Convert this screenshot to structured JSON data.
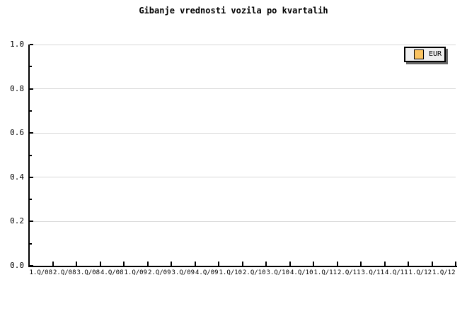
{
  "page": {
    "background_color": "#ffffff"
  },
  "chart_data": {
    "type": "line",
    "title": "Gibanje vrednosti vozila po kvartalih",
    "xlabel": "",
    "ylabel": "",
    "categories": [
      "1.Q/08",
      "2.Q/08",
      "3.Q/08",
      "4.Q/08",
      "1.Q/09",
      "2.Q/09",
      "3.Q/09",
      "4.Q/09",
      "1.Q/10",
      "2.Q/10",
      "3.Q/10",
      "4.Q/10",
      "1.Q/11",
      "2.Q/11",
      "3.Q/11",
      "4.Q/11",
      "1.Q/12",
      "1.Q/12"
    ],
    "series": [
      {
        "name": "EUR",
        "values": [],
        "color": "#fac360"
      }
    ],
    "ylim": [
      0,
      1
    ],
    "y_major_ticks": [
      "0.0",
      "0.2",
      "0.4",
      "0.6",
      "0.8",
      "1.0"
    ],
    "y_minor_ticks": [
      0.1,
      0.3,
      0.5,
      0.7,
      0.9
    ],
    "grid": "horizontal-only",
    "gridline_color": "#d8d8d8",
    "axis_color": "#000000",
    "legend": {
      "position": "top-right",
      "background": "#efefef",
      "border_color": "#000000",
      "shadow_color": "#666666",
      "entries": [
        {
          "label": "EUR",
          "swatch_color": "#fac360"
        }
      ]
    }
  }
}
